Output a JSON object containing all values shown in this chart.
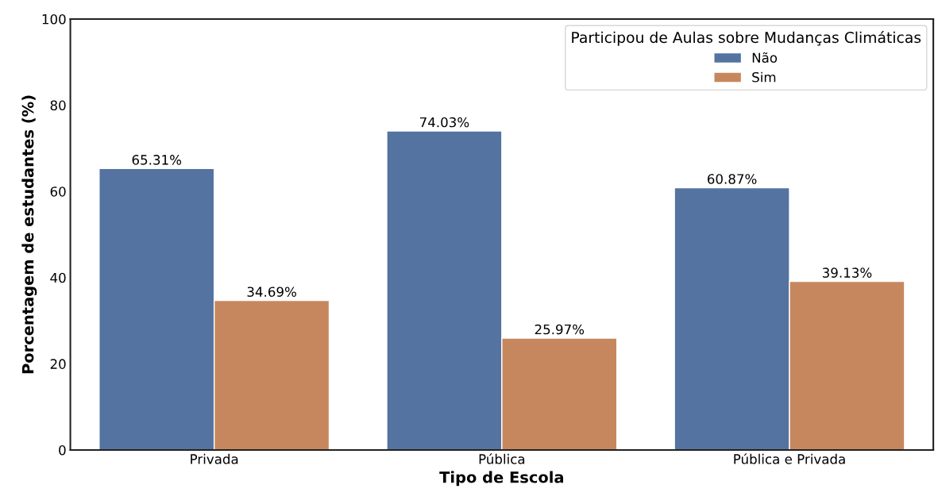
{
  "chart_data": {
    "type": "bar",
    "xlabel": "Tipo de Escola",
    "ylabel": "Porcentagem de estudantes (%)",
    "legend_title": "Participou de Aulas sobre Mudanças Climáticas",
    "categories": [
      "Privada",
      "Pública",
      "Pública e Privada"
    ],
    "series": [
      {
        "name": "Não",
        "color": "#5473a0",
        "values": [
          65.31,
          74.03,
          60.87
        ],
        "value_labels": [
          "65.31%",
          "74.03%",
          "60.87%"
        ]
      },
      {
        "name": "Sim",
        "color": "#c7875e",
        "values": [
          34.69,
          25.97,
          39.13
        ],
        "value_labels": [
          "34.69%",
          "25.97%",
          "39.13%"
        ]
      }
    ],
    "ylim": [
      0,
      100
    ],
    "yticks": [
      0,
      20,
      40,
      60,
      80,
      100
    ],
    "grid": false,
    "legend": "top right"
  }
}
